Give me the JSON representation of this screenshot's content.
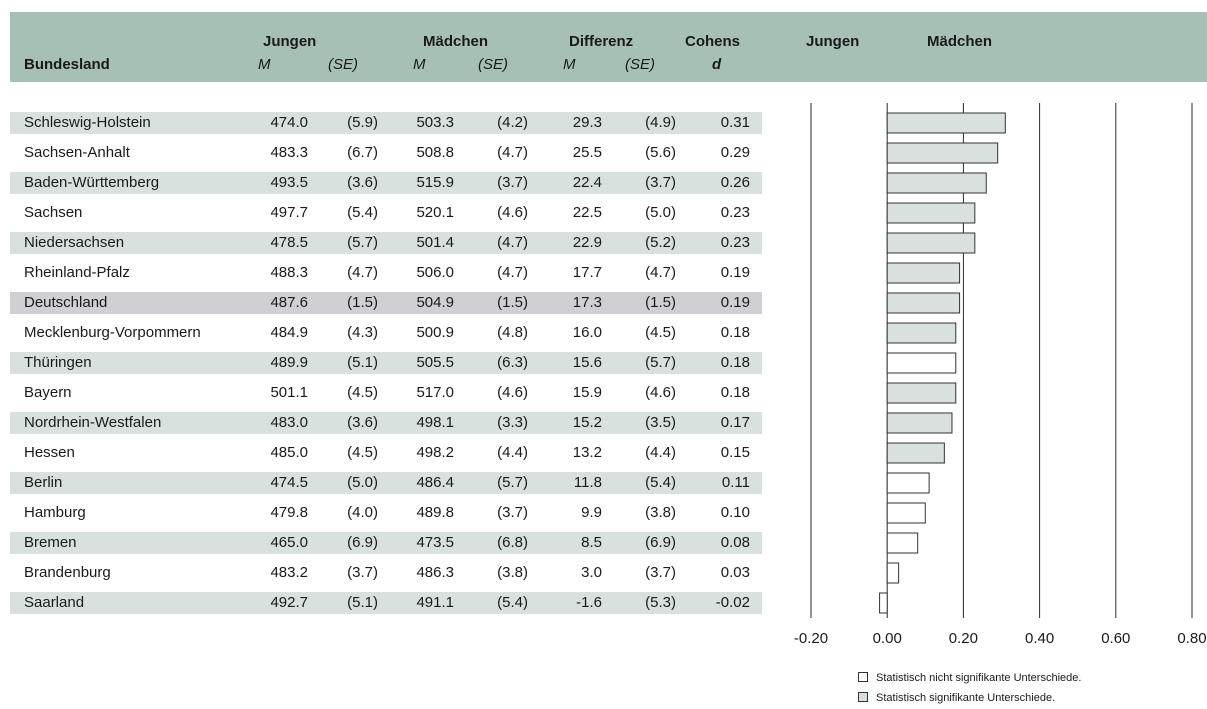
{
  "header": {
    "state": "Bundesland",
    "boys": "Jungen",
    "girls": "Mädchen",
    "diff": "Differenz",
    "effect_line1": "Cohens",
    "effect_line2": "d",
    "mean": "M",
    "se": "(SE)",
    "chart_boys": "Jungen",
    "chart_girls": "Mädchen"
  },
  "rows": [
    {
      "name": "Schleswig-Holstein",
      "boys_m": "474.0",
      "boys_se": "(5.9)",
      "girls_m": "503.3",
      "girls_se": "(4.2)",
      "diff_m": "29.3",
      "diff_se": "(4.9)",
      "d": "0.31"
    },
    {
      "name": "Sachsen-Anhalt",
      "boys_m": "483.3",
      "boys_se": "(6.7)",
      "girls_m": "508.8",
      "girls_se": "(4.7)",
      "diff_m": "25.5",
      "diff_se": "(5.6)",
      "d": "0.29"
    },
    {
      "name": "Baden-Württemberg",
      "boys_m": "493.5",
      "boys_se": "(3.6)",
      "girls_m": "515.9",
      "girls_se": "(3.7)",
      "diff_m": "22.4",
      "diff_se": "(3.7)",
      "d": "0.26"
    },
    {
      "name": "Sachsen",
      "boys_m": "497.7",
      "boys_se": "(5.4)",
      "girls_m": "520.1",
      "girls_se": "(4.6)",
      "diff_m": "22.5",
      "diff_se": "(5.0)",
      "d": "0.23"
    },
    {
      "name": "Niedersachsen",
      "boys_m": "478.5",
      "boys_se": "(5.7)",
      "girls_m": "501.4",
      "girls_se": "(4.7)",
      "diff_m": "22.9",
      "diff_se": "(5.2)",
      "d": "0.23"
    },
    {
      "name": "Rheinland-Pfalz",
      "boys_m": "488.3",
      "boys_se": "(4.7)",
      "girls_m": "506.0",
      "girls_se": "(4.7)",
      "diff_m": "17.7",
      "diff_se": "(4.7)",
      "d": "0.19"
    },
    {
      "name": "Deutschland",
      "boys_m": "487.6",
      "boys_se": "(1.5)",
      "girls_m": "504.9",
      "girls_se": "(1.5)",
      "diff_m": "17.3",
      "diff_se": "(1.5)",
      "d": "0.19"
    },
    {
      "name": "Mecklenburg-Vorpommern",
      "boys_m": "484.9",
      "boys_se": "(4.3)",
      "girls_m": "500.9",
      "girls_se": "(4.8)",
      "diff_m": "16.0",
      "diff_se": "(4.5)",
      "d": "0.18"
    },
    {
      "name": "Thüringen",
      "boys_m": "489.9",
      "boys_se": "(5.1)",
      "girls_m": "505.5",
      "girls_se": "(6.3)",
      "diff_m": "15.6",
      "diff_se": "(5.7)",
      "d": "0.18"
    },
    {
      "name": "Bayern",
      "boys_m": "501.1",
      "boys_se": "(4.5)",
      "girls_m": "517.0",
      "girls_se": "(4.6)",
      "diff_m": "15.9",
      "diff_se": "(4.6)",
      "d": "0.18"
    },
    {
      "name": "Nordrhein-Westfalen",
      "boys_m": "483.0",
      "boys_se": "(3.6)",
      "girls_m": "498.1",
      "girls_se": "(3.3)",
      "diff_m": "15.2",
      "diff_se": "(3.5)",
      "d": "0.17"
    },
    {
      "name": "Hessen",
      "boys_m": "485.0",
      "boys_se": "(4.5)",
      "girls_m": "498.2",
      "girls_se": "(4.4)",
      "diff_m": "13.2",
      "diff_se": "(4.4)",
      "d": "0.15"
    },
    {
      "name": "Berlin",
      "boys_m": "474.5",
      "boys_se": "(5.0)",
      "girls_m": "486.4",
      "girls_se": "(5.7)",
      "diff_m": "11.8",
      "diff_se": "(5.4)",
      "d": "0.11"
    },
    {
      "name": "Hamburg",
      "boys_m": "479.8",
      "boys_se": "(4.0)",
      "girls_m": "489.8",
      "girls_se": "(3.7)",
      "diff_m": "9.9",
      "diff_se": "(3.8)",
      "d": "0.10"
    },
    {
      "name": "Bremen",
      "boys_m": "465.0",
      "boys_se": "(6.9)",
      "girls_m": "473.5",
      "girls_se": "(6.8)",
      "diff_m": "8.5",
      "diff_se": "(6.9)",
      "d": "0.08"
    },
    {
      "name": "Brandenburg",
      "boys_m": "483.2",
      "boys_se": "(3.7)",
      "girls_m": "486.3",
      "girls_se": "(3.8)",
      "diff_m": "3.0",
      "diff_se": "(3.7)",
      "d": "0.03"
    },
    {
      "name": "Saarland",
      "boys_m": "492.7",
      "boys_se": "(5.1)",
      "girls_m": "491.1",
      "girls_se": "(5.4)",
      "diff_m": "-1.6",
      "diff_se": "(5.3)",
      "d": "-0.02"
    }
  ],
  "legend": {
    "not_significant": "Statistisch nicht signifikante Unterschiede.",
    "significant": "Statistisch signifikante Unterschiede."
  },
  "colors": {
    "header_band": "#a7c0b6",
    "row_shade": "#d8e1dd",
    "national_row": "#cfd0d4",
    "significant_fill": "#d8e1dd",
    "not_significant_fill": "#ffffff",
    "bar_stroke": "#333333"
  },
  "chart_data": {
    "type": "bar",
    "orientation": "horizontal",
    "categories": [
      "Schleswig-Holstein",
      "Sachsen-Anhalt",
      "Baden-Württemberg",
      "Sachsen",
      "Niedersachsen",
      "Rheinland-Pfalz",
      "Deutschland",
      "Mecklenburg-Vorpommern",
      "Thüringen",
      "Bayern",
      "Nordrhein-Westfalen",
      "Hessen",
      "Berlin",
      "Hamburg",
      "Bremen",
      "Brandenburg",
      "Saarland"
    ],
    "values": [
      0.31,
      0.29,
      0.26,
      0.23,
      0.23,
      0.19,
      0.19,
      0.18,
      0.18,
      0.18,
      0.17,
      0.15,
      0.11,
      0.1,
      0.08,
      0.03,
      -0.02
    ],
    "significant": [
      true,
      true,
      true,
      true,
      true,
      true,
      true,
      true,
      false,
      true,
      true,
      true,
      false,
      false,
      false,
      false,
      false
    ],
    "xlim": [
      -0.2,
      0.8
    ],
    "xticks": [
      "-0.20",
      "0.00",
      "0.20",
      "0.40",
      "0.60",
      "0.80"
    ],
    "grid": true,
    "legend_position": "bottom-right"
  }
}
